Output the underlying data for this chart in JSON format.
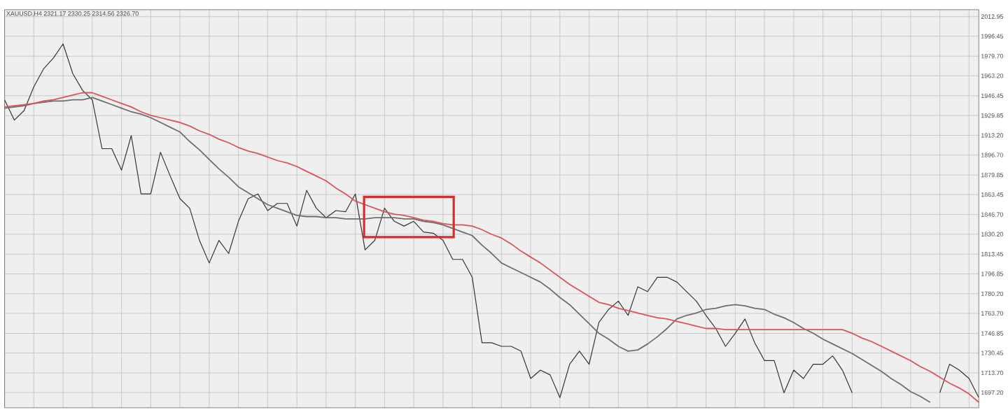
{
  "chart_data": {
    "type": "line",
    "title": "XAUUSD,H4  2321.17 2330.25 2314.56 2326.70",
    "categories": [
      null,
      null,
      null,
      null,
      null,
      null,
      null,
      null,
      null,
      null,
      null,
      null,
      null,
      null,
      null,
      null,
      null,
      null,
      null,
      null,
      null,
      null,
      null,
      null,
      null,
      null,
      null,
      null,
      null,
      null,
      null,
      null,
      null,
      null,
      null,
      null,
      null,
      null,
      null,
      null,
      null,
      null,
      null,
      null,
      null,
      null,
      null,
      null,
      null,
      null,
      null,
      null,
      null,
      null,
      null,
      null,
      null,
      null,
      null,
      null,
      null,
      null,
      null,
      null,
      null,
      null,
      null,
      null,
      null,
      null,
      null,
      null,
      null,
      null,
      null,
      null,
      null,
      null,
      null,
      null,
      null,
      null,
      null,
      null,
      null,
      null,
      null,
      null,
      null,
      null,
      null,
      null,
      null,
      null,
      null,
      null,
      null,
      null,
      null,
      null,
      null
    ],
    "ylim": [
      1684.4,
      2018.7
    ],
    "yticks": [
      {
        "value": 2012.95,
        "label": "2012.95"
      },
      {
        "value": 1996.45,
        "label": "1996.45"
      },
      {
        "value": 1979.7,
        "label": "1979.70"
      },
      {
        "value": 1963.2,
        "label": "1963.20"
      },
      {
        "value": 1946.45,
        "label": "1946.45"
      },
      {
        "value": 1929.85,
        "label": "1929.85"
      },
      {
        "value": 1913.2,
        "label": "1913.20"
      },
      {
        "value": 1896.7,
        "label": "1896.70"
      },
      {
        "value": 1879.85,
        "label": "1879.85"
      },
      {
        "value": 1863.45,
        "label": "1863.45"
      },
      {
        "value": 1846.7,
        "label": "1846.70"
      },
      {
        "value": 1830.2,
        "label": "1830.20"
      },
      {
        "value": 1813.45,
        "label": "1813.45"
      },
      {
        "value": 1796.85,
        "label": "1796.85"
      },
      {
        "value": 1780.2,
        "label": "1780.20"
      },
      {
        "value": 1763.7,
        "label": "1763.70"
      },
      {
        "value": 1746.85,
        "label": "1746.85"
      },
      {
        "value": 1730.45,
        "label": "1730.45"
      },
      {
        "value": 1713.7,
        "label": "1713.70"
      },
      {
        "value": 1697.2,
        "label": "1697.20"
      }
    ],
    "grid": true,
    "series": [
      {
        "color": "#333333",
        "values": [
          1943,
          1926,
          1934,
          1954,
          1969,
          1978,
          1990,
          1965,
          1951,
          1943,
          1902,
          1902,
          1884,
          1913,
          1864,
          1864,
          1899,
          1879,
          1860,
          1852,
          1825,
          1806,
          1825,
          1814,
          1841,
          1860,
          1864,
          1850,
          1856,
          1856,
          1837,
          1867,
          1852,
          1844,
          1850,
          1849,
          1864,
          1817,
          1825,
          1852,
          1841,
          1837,
          1841,
          1832,
          1831,
          1825,
          1809,
          1809,
          1794,
          1739,
          1739,
          1736,
          1736,
          1732,
          1709,
          1716,
          1712,
          1693,
          1721,
          1732,
          1721,
          1756,
          1767,
          1774,
          1762,
          1786,
          1782,
          1794,
          1794,
          1790,
          1782,
          1774,
          1762,
          1751,
          1736,
          1747,
          1759,
          1739,
          1724,
          1724,
          1697,
          1716,
          1709,
          1721,
          1721,
          1728,
          1716,
          1697,
          null,
          null,
          null,
          null,
          null,
          null,
          null,
          null,
          1697,
          1721,
          1716,
          1709,
          1693
        ]
      },
      {
        "color": "#6e6e6e",
        "values": [
          1936,
          1937,
          1938,
          1940,
          1941,
          1942,
          1942,
          1943,
          1943,
          1945,
          1942,
          1939,
          1936,
          1933,
          1931,
          1928,
          1924,
          1920,
          1916,
          1908,
          1901,
          1893,
          1885,
          1878,
          1870,
          1865,
          1860,
          1855,
          1852,
          1849,
          1846,
          1845,
          1845,
          1844,
          1844,
          1843,
          1843,
          1843,
          1844,
          1844,
          1844,
          1843,
          1843,
          1841,
          1840,
          1838,
          1835,
          1832,
          1829,
          1821,
          1814,
          1806,
          1802,
          1798,
          1794,
          1790,
          1784,
          1777,
          1771,
          1763,
          1755,
          1747,
          1742,
          1736,
          1732,
          1733,
          1738,
          1744,
          1751,
          1759,
          1762,
          1764,
          1767,
          1768,
          1770,
          1771,
          1770,
          1768,
          1767,
          1763,
          1760,
          1756,
          1751,
          1747,
          1742,
          1738,
          1734,
          1730,
          1725,
          1720,
          1715,
          1709,
          1704,
          1698,
          1694,
          1689,
          null,
          null,
          null,
          null,
          null
        ]
      },
      {
        "color": "#d9535a",
        "values": [
          1937,
          1938,
          1939,
          1940,
          1942,
          1943,
          1945,
          1947,
          1949,
          1949,
          1946,
          1943,
          1940,
          1937,
          1933,
          1930,
          1928,
          1926,
          1924,
          1921,
          1917,
          1914,
          1910,
          1907,
          1903,
          1900,
          1898,
          1895,
          1892,
          1890,
          1887,
          1883,
          1879,
          1875,
          1869,
          1864,
          1858,
          1855,
          1852,
          1849,
          1847,
          1846,
          1844,
          1842,
          1841,
          1839,
          1838,
          1838,
          1837,
          1834,
          1830,
          1827,
          1822,
          1816,
          1811,
          1806,
          1800,
          1794,
          1788,
          1783,
          1778,
          1773,
          1771,
          1768,
          1766,
          1764,
          1762,
          1760,
          1759,
          1757,
          1755,
          1753,
          1751,
          1751,
          1750,
          1750,
          1750,
          1750,
          1750,
          1750,
          1750,
          1750,
          1750,
          1750,
          1750,
          1750,
          1750,
          1747,
          1743,
          1740,
          1736,
          1732,
          1728,
          1724,
          1719,
          1715,
          1710,
          1705,
          1701,
          1696,
          1689
        ]
      }
    ]
  }
}
